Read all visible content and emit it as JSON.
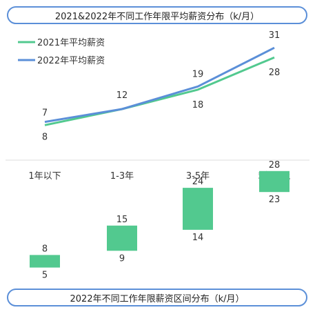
{
  "top_title": "2021&2022年不同工作年限平均薪资分布（k/月）",
  "bottom_title": "2022年不同工作年限薪资区间分布（k/月）",
  "colors": {
    "y2021": "#52c98f",
    "y2022": "#5b8fd8",
    "divider": "#dddddd",
    "text": "#333333"
  },
  "chart_data": [
    {
      "type": "line",
      "title": "2021&2022年不同工作年限平均薪资分布（k/月）",
      "categories": [
        "1年以下",
        "1-3年",
        "3-5年",
        "5年以上"
      ],
      "series": [
        {
          "name": "2021年平均薪资",
          "values": [
            7,
            12,
            18,
            28
          ]
        },
        {
          "name": "2022年平均薪资",
          "values": [
            8,
            12,
            19,
            31
          ]
        }
      ],
      "grid": false,
      "legend": "top-left"
    },
    {
      "type": "bar",
      "title": "2022年不同工作年限薪资区间分布（k/月）",
      "categories": [
        "1年以下",
        "1-3年",
        "3-5年",
        "5年以上"
      ],
      "series": [
        {
          "name": "",
          "low": [
            5,
            9,
            14,
            23
          ],
          "high": [
            8,
            15,
            24,
            28
          ]
        }
      ],
      "grid": false
    }
  ]
}
